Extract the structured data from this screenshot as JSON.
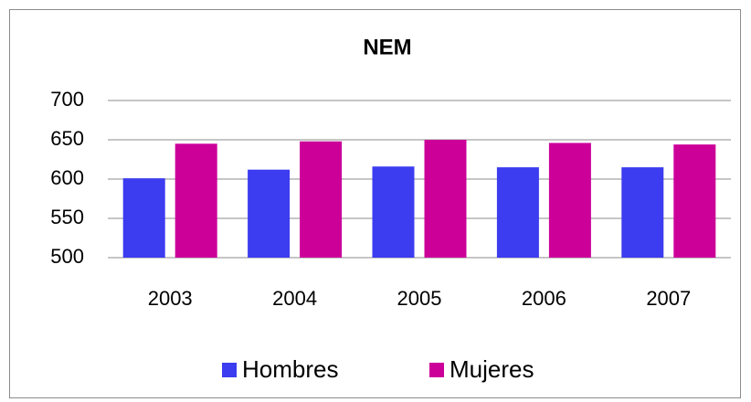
{
  "chart_data": {
    "type": "bar",
    "title": "NEM",
    "categories": [
      "2003",
      "2004",
      "2005",
      "2006",
      "2007"
    ],
    "series": [
      {
        "name": "Hombres",
        "color": "#3c3cf0",
        "values": [
          601,
          612,
          616,
          615,
          615
        ]
      },
      {
        "name": "Mujeres",
        "color": "#cc0099",
        "values": [
          645,
          648,
          650,
          646,
          644
        ]
      }
    ],
    "ylim": [
      500,
      700
    ],
    "yticks": [
      500,
      550,
      600,
      650,
      700
    ],
    "grid": true,
    "legend": "bottom"
  }
}
